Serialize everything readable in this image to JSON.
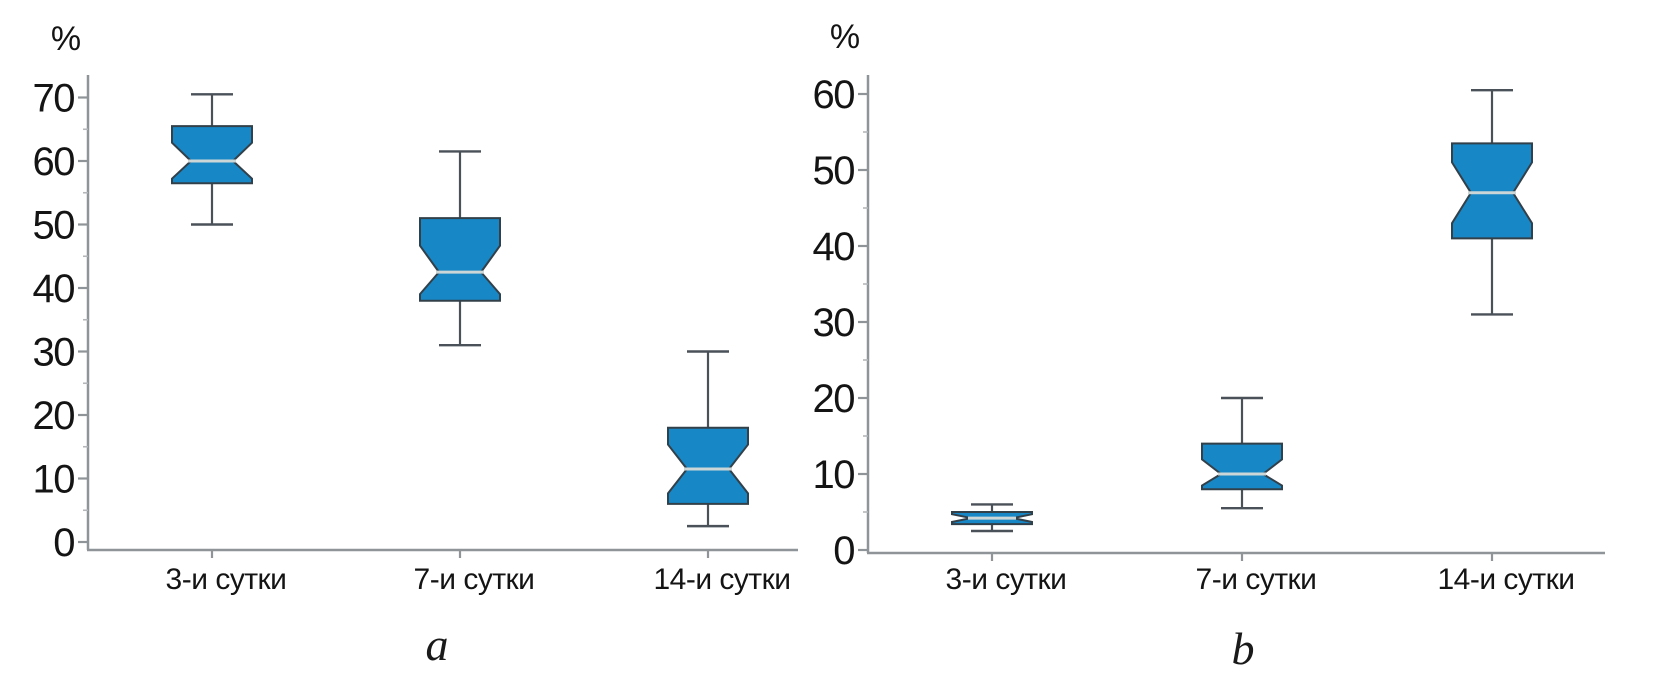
{
  "figure": {
    "background": "#ffffff",
    "panels": [
      "a",
      "b"
    ]
  },
  "chart_data": [
    {
      "type": "boxplot",
      "panel_label": "a",
      "y_axis_label": "%",
      "ylim": [
        0,
        72
      ],
      "yticks": [
        0,
        10,
        20,
        30,
        40,
        50,
        60,
        70
      ],
      "grid": false,
      "legend": null,
      "categories": [
        "3-и сутки",
        "7-и сутки",
        "14-и сутки"
      ],
      "boxes": [
        {
          "label": "3-и сутки",
          "whisker_low": 50,
          "q1": 56.5,
          "median": 60,
          "q3": 65.5,
          "whisker_high": 70.5
        },
        {
          "label": "7-и сутки",
          "whisker_low": 31,
          "q1": 38,
          "median": 42.5,
          "q3": 51,
          "whisker_high": 61.5
        },
        {
          "label": "14-и сутки",
          "whisker_low": 2.5,
          "q1": 6,
          "median": 11.5,
          "q3": 18,
          "whisker_high": 30
        }
      ]
    },
    {
      "type": "boxplot",
      "panel_label": "b",
      "y_axis_label": "%",
      "ylim": [
        0,
        63
      ],
      "yticks": [
        0,
        10,
        20,
        30,
        40,
        50,
        60
      ],
      "grid": false,
      "legend": null,
      "categories": [
        "3-и сутки",
        "7-и сутки",
        "14-и сутки"
      ],
      "boxes": [
        {
          "label": "3-и сутки",
          "whisker_low": 2.5,
          "q1": 3.4,
          "median": 4.2,
          "q3": 5,
          "whisker_high": 6
        },
        {
          "label": "7-и сутки",
          "whisker_low": 5.5,
          "q1": 8,
          "median": 10,
          "q3": 14,
          "whisker_high": 20
        },
        {
          "label": "14-и сутки",
          "whisker_low": 31,
          "q1": 41,
          "median": 47,
          "q3": 53.5,
          "whisker_high": 60.5
        }
      ]
    }
  ],
  "style": {
    "box_fill": "#1787c6",
    "box_edge": "#32404a",
    "median_line": "#ccd6d6",
    "whisker_color": "#4a5158",
    "axis_color": "#8f9498",
    "minor_tick_color": "#b3b7ba",
    "tick_label_color": "#141414"
  }
}
